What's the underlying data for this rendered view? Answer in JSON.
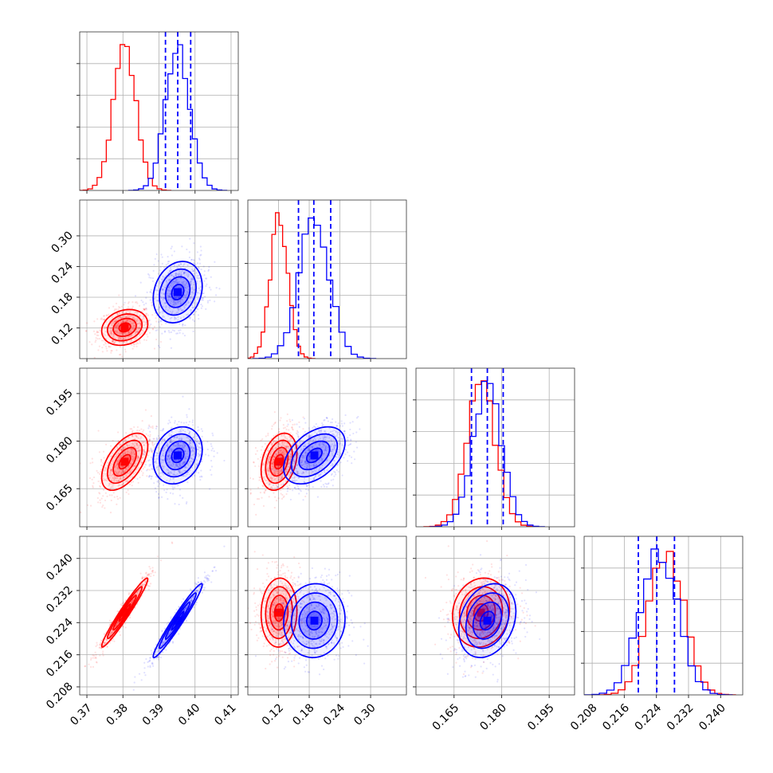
{
  "chart_data": {
    "type": "corner",
    "parameters": [
      {
        "range": [
          0.368,
          0.412
        ],
        "ticks": [
          0.37,
          0.38,
          0.39,
          0.4,
          0.41
        ],
        "tick_labels": [
          "0.37",
          "0.38",
          "0.39",
          "0.40",
          "0.41"
        ]
      },
      {
        "range": [
          0.06,
          0.37
        ],
        "ticks": [
          0.12,
          0.18,
          0.24,
          0.3
        ],
        "tick_labels": [
          "0.12",
          "0.18",
          "0.24",
          "0.30"
        ]
      },
      {
        "range": [
          0.153,
          0.203
        ],
        "ticks": [
          0.165,
          0.18,
          0.195
        ],
        "tick_labels": [
          "0.165",
          "0.180",
          "0.195"
        ]
      },
      {
        "range": [
          0.206,
          0.2455
        ],
        "ticks": [
          0.208,
          0.216,
          0.224,
          0.232,
          0.24
        ],
        "tick_labels": [
          "0.208",
          "0.216",
          "0.224",
          "0.232",
          "0.240"
        ]
      }
    ],
    "grid": true,
    "series": [
      {
        "color": "#ff0000",
        "means": [
          0.3805,
          0.121,
          0.1735,
          0.2265
        ],
        "sigmas": [
          0.0032,
          0.0175,
          0.0045,
          0.0043
        ],
        "correlations": {
          "0-1": 0.2,
          "0-2": 0.55,
          "0-3": 0.97,
          "1-2": 0.3,
          "1-3": 0.05,
          "2-3": 0.1
        },
        "quantile_lines": false
      },
      {
        "color": "#0000ff",
        "means": [
          0.3952,
          0.19,
          0.1755,
          0.2245
        ],
        "sigmas": [
          0.0034,
          0.03,
          0.0045,
          0.0046
        ],
        "correlations": {
          "0-1": 0.2,
          "0-2": 0.2,
          "0-3": 0.97,
          "1-2": 0.45,
          "1-3": 0.05,
          "2-3": 0.25
        },
        "quantile_lines": true,
        "quantiles": [
          [
            0.3918,
            0.3952,
            0.3988
          ],
          [
            0.159,
            0.189,
            0.222
          ],
          [
            0.1705,
            0.1755,
            0.1805
          ],
          [
            0.2195,
            0.2241,
            0.2285
          ]
        ]
      }
    ]
  }
}
